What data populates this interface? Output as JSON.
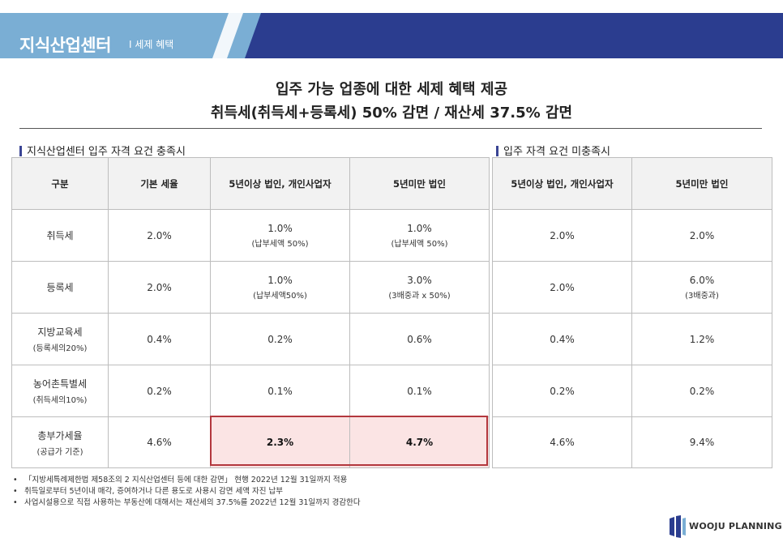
{
  "header": {
    "title": "지식산업센터",
    "subtitle": "I 세제 혜택",
    "colors": {
      "light": "#7aaed4",
      "dark": "#2b3d8f"
    }
  },
  "headline": {
    "line1": "입주 가능 업종에 대한 세제 혜택 제공",
    "line2": "취득세(취득세+등록세) 50% 감면 / 재산세 37.5% 감면"
  },
  "left_section": {
    "label": "지식산업센터 입주 자격 요건 충족시",
    "headers": [
      "구분",
      "기본 세율",
      "5년이상 법인, 개인사업자",
      "5년미만 법인"
    ],
    "rows": [
      {
        "name": "취득세",
        "name_note": "",
        "base": "2.0%",
        "over5": "1.0%",
        "over5_note": "(납부세액 50%)",
        "under5": "1.0%",
        "under5_note": "(납부세액 50%)"
      },
      {
        "name": "등록세",
        "name_note": "",
        "base": "2.0%",
        "over5": "1.0%",
        "over5_note": "(납부세액50%)",
        "under5": "3.0%",
        "under5_note": "(3배중과 x 50%)"
      },
      {
        "name": "지방교육세",
        "name_note": "(등록세의20%)",
        "base": "0.4%",
        "over5": "0.2%",
        "over5_note": "",
        "under5": "0.6%",
        "under5_note": ""
      },
      {
        "name": "농어촌특별세",
        "name_note": "(취득세의10%)",
        "base": "0.2%",
        "over5": "0.1%",
        "over5_note": "",
        "under5": "0.1%",
        "under5_note": ""
      },
      {
        "name": "총부가세율",
        "name_note": "(공급가 기준)",
        "base": "4.6%",
        "over5": "2.3%",
        "over5_note": "",
        "under5": "4.7%",
        "under5_note": ""
      }
    ]
  },
  "right_section": {
    "label": "입주 자격 요건 미충족시",
    "headers": [
      "5년이상 법인, 개인사업자",
      "5년미만 법인"
    ],
    "rows": [
      {
        "over5": "2.0%",
        "under5": "2.0%",
        "under5_note": ""
      },
      {
        "over5": "2.0%",
        "under5": "6.0%",
        "under5_note": "(3배중과)"
      },
      {
        "over5": "0.4%",
        "under5": "1.2%",
        "under5_note": ""
      },
      {
        "over5": "0.2%",
        "under5": "0.2%",
        "under5_note": ""
      },
      {
        "over5": "4.6%",
        "under5": "9.4%",
        "under5_note": ""
      }
    ]
  },
  "notes": [
    "「지방세특례제한법 제58조의 2 지식산업센터 등에 대한 감면」 현행 2022년 12월 31일까지 적용",
    "취득일로부터 5년이내 매각, 증여하거나 다른 용도로 사용시 감면 세액 자진 납부",
    "사업시설용으로 직접 사용하는 부동산에 대해서는 재산세의 37.5%를 2022년 12월 31일까지 경감한다"
  ],
  "logo": {
    "text": "WOOJU PLANNING"
  },
  "highlight_color": "#b3373d"
}
